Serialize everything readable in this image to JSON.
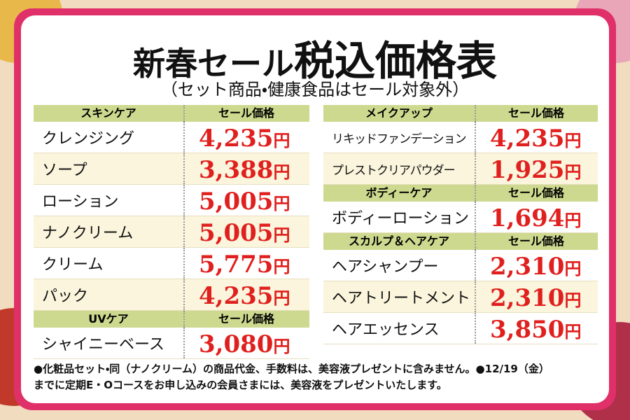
{
  "title": {
    "main": "新春セール",
    "emphasis": "税込価格表"
  },
  "subtitle": "（セット商品・健康食品はセール対象外）",
  "columns": [
    {
      "sections": [
        {
          "name": "スキンケア",
          "price_header": "セール価格",
          "items": [
            {
              "name": "クレンジング",
              "price": "4,235",
              "unit": "円"
            },
            {
              "name": "ソープ",
              "price": "3,388",
              "unit": "円"
            },
            {
              "name": "ローション",
              "price": "5,005",
              "unit": "円"
            },
            {
              "name": "ナノクリーム",
              "price": "5,005",
              "unit": "円"
            },
            {
              "name": "クリーム",
              "price": "5,775",
              "unit": "円"
            },
            {
              "name": "パック",
              "price": "4,235",
              "unit": "円"
            }
          ]
        },
        {
          "name": "UVケア",
          "price_header": "セール価格",
          "items": [
            {
              "name": "シャイニーベース",
              "price": "3,080",
              "unit": "円"
            }
          ]
        }
      ]
    },
    {
      "sections": [
        {
          "name": "メイクアップ",
          "price_header": "セール価格",
          "items": [
            {
              "name": "リキッドファンデーション",
              "price": "4,235",
              "unit": "円"
            },
            {
              "name": "プレストクリアパウダー",
              "price": "1,925",
              "unit": "円"
            }
          ]
        },
        {
          "name": "ボディーケア",
          "price_header": "セール価格",
          "items": [
            {
              "name": "ボディーローション",
              "price": "1,694",
              "unit": "円"
            }
          ]
        },
        {
          "name": "スカルプ＆ヘアケア",
          "price_header": "セール価格",
          "items": [
            {
              "name": "ヘアシャンプー",
              "price": "2,310",
              "unit": "円"
            },
            {
              "name": "ヘアトリートメント",
              "price": "2,310",
              "unit": "円"
            },
            {
              "name": "ヘアエッセンス",
              "price": "3,850",
              "unit": "円"
            }
          ]
        }
      ]
    }
  ],
  "notes": [
    "●化粧品セット・同（ナノクリーム）の商品代金、手数料は、美容液プレゼントに含みません。●12/19（金）",
    "までに定期E・Oコースをお申し込みの会員さまには、美容液をプレゼントいたします。"
  ]
}
